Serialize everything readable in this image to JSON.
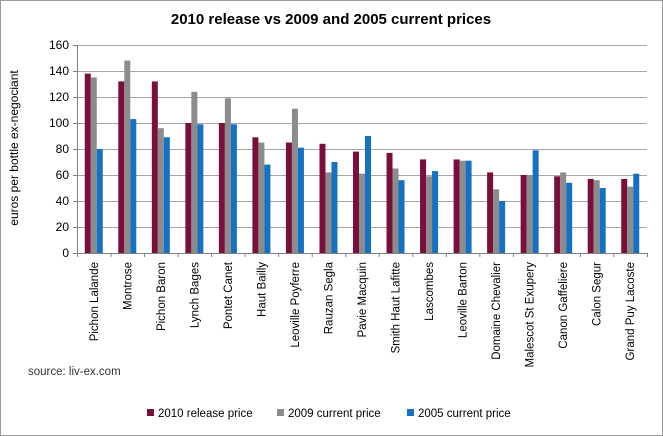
{
  "source_note": "source: liv-ex.com",
  "chart_data": {
    "type": "bar",
    "title": "2010 release vs 2009 and 2005 current prices",
    "ylabel": "euros per bottle ex-negociant",
    "xlabel": "",
    "ylim": [
      0,
      160
    ],
    "yticks": [
      0,
      20,
      40,
      60,
      80,
      100,
      120,
      140,
      160
    ],
    "grid": true,
    "legend": "bottom",
    "categories": [
      "Pichon Lalande",
      "Montrose",
      "Pichon Baron",
      "Lynch Bages",
      "Pontet Canet",
      "Haut Bailly",
      "Leoville Poyferre",
      "Rauzan Segla",
      "Pavie Macquin",
      "Smith Haut Lafitte",
      "Lascombes",
      "Leoville Barton",
      "Domaine Chevalier",
      "Malescot St Exupery",
      "Canon Gaffeliere",
      "Calon Segur",
      "Grand Puy Lacoste"
    ],
    "series": [
      {
        "name": "2010 release price",
        "color": "#7b0f3c",
        "values": [
          138,
          132,
          132,
          100,
          100,
          89,
          85,
          84,
          78,
          77,
          72,
          72,
          62,
          60,
          59,
          57,
          57
        ]
      },
      {
        "name": "2009 current price",
        "color": "#8c8c8c",
        "values": [
          135,
          148,
          96,
          124,
          119,
          85,
          111,
          62,
          61,
          65,
          59,
          71,
          49,
          60,
          62,
          56,
          51
        ]
      },
      {
        "name": "2005 current price",
        "color": "#1571c1",
        "values": [
          80,
          103,
          89,
          99,
          99,
          68,
          81,
          70,
          90,
          56,
          63,
          71,
          40,
          79,
          54,
          50,
          61
        ]
      }
    ]
  }
}
